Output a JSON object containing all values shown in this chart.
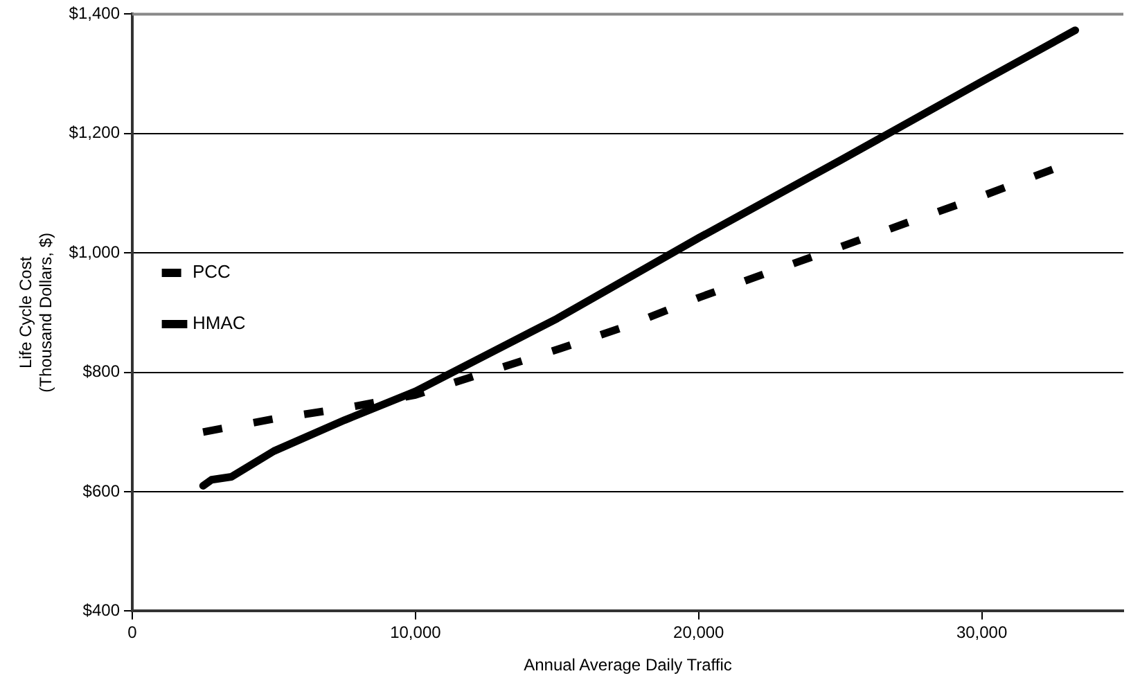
{
  "chart_data": {
    "type": "line",
    "xlabel": "Annual Average Daily Traffic",
    "ylabel": "Life Cycle Cost\n(Thousand Dollars, $)",
    "xlim": [
      0,
      35000
    ],
    "xticks": [
      0,
      {
        "value": 10000,
        "label": "10,000"
      },
      {
        "value": 20000,
        "label": "20,000"
      },
      {
        "value": 30000,
        "label": "30,000"
      }
    ],
    "ylim": [
      400,
      1400
    ],
    "yticks": [
      {
        "value": 400,
        "label": "$400"
      },
      {
        "value": 600,
        "label": "$600"
      },
      {
        "value": 800,
        "label": "$800"
      },
      {
        "value": 1000,
        "label": "$1,000"
      },
      {
        "value": 1200,
        "label": "$1,200"
      },
      {
        "value": 1400,
        "label": "$1,400"
      }
    ],
    "grid": "y",
    "legend": "top",
    "marker": "none",
    "series": [
      {
        "name": "PCC",
        "color": "#000000",
        "line_style": "dashed",
        "x": [
          2500,
          5000,
          7500,
          10000,
          12500,
          15000,
          17500,
          20000,
          22500,
          25000,
          27500,
          30000,
          32500
        ],
        "values": [
          700,
          722,
          740,
          762,
          800,
          838,
          878,
          925,
          968,
          1010,
          1053,
          1095,
          1140
        ]
      },
      {
        "name": "HMAC",
        "color": "#000000",
        "line_style": "solid",
        "x": [
          2500,
          2800,
          3500,
          5000,
          7500,
          10000,
          15000,
          20000,
          25000,
          30000,
          33300
        ],
        "values": [
          610,
          620,
          625,
          668,
          720,
          768,
          890,
          1025,
          1155,
          1287,
          1373
        ]
      }
    ]
  }
}
